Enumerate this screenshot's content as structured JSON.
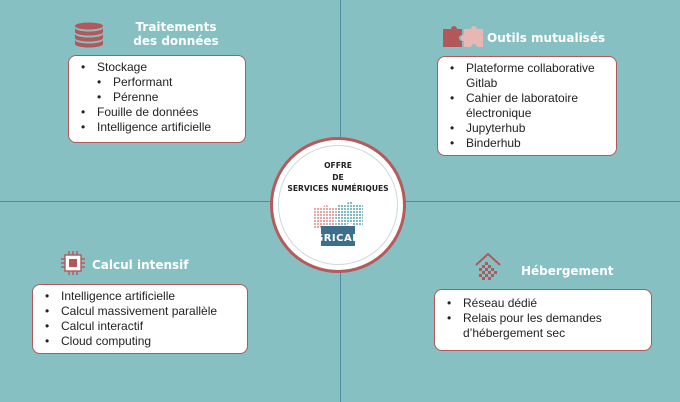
{
  "center": {
    "title_lines": [
      "OFFRE",
      "DE",
      "SERVICES NUMÉRIQUES"
    ],
    "logo_text": "GRICAD"
  },
  "sections": {
    "traitements": {
      "icon": "database-icon",
      "title_lines": [
        "Traitements",
        "des données"
      ],
      "items": [
        "Stockage",
        "Performant",
        "Pérenne",
        "Fouille de données",
        "Intelligence artificielle"
      ]
    },
    "outils": {
      "icon": "puzzle-icon",
      "title_lines": [
        "Outils mutualisés"
      ],
      "items": [
        "Plateforme collaborative",
        "Gitlab",
        "Cahier de laboratoire",
        "électronique",
        "Jupyterhub",
        "Binderhub"
      ]
    },
    "calcul": {
      "icon": "cpu-chip-icon",
      "title_lines": [
        "Calcul intensif"
      ],
      "items": [
        "Intelligence artificielle",
        "Calcul massivement parallèle",
        "Calcul interactif",
        "Cloud computing"
      ]
    },
    "hebergement": {
      "icon": "house-icon",
      "title_lines": [
        "Hébergement"
      ],
      "items": [
        "Réseau dédié",
        "Relais pour les demandes",
        "d’hébergement sec"
      ]
    }
  },
  "colors": {
    "background": "#86c0c2",
    "accent_red": "#b3585a",
    "puzzle_pink": "#e8b7b4",
    "puzzle_teal": "#8fc6cc",
    "divider": "#4e8ea3"
  }
}
